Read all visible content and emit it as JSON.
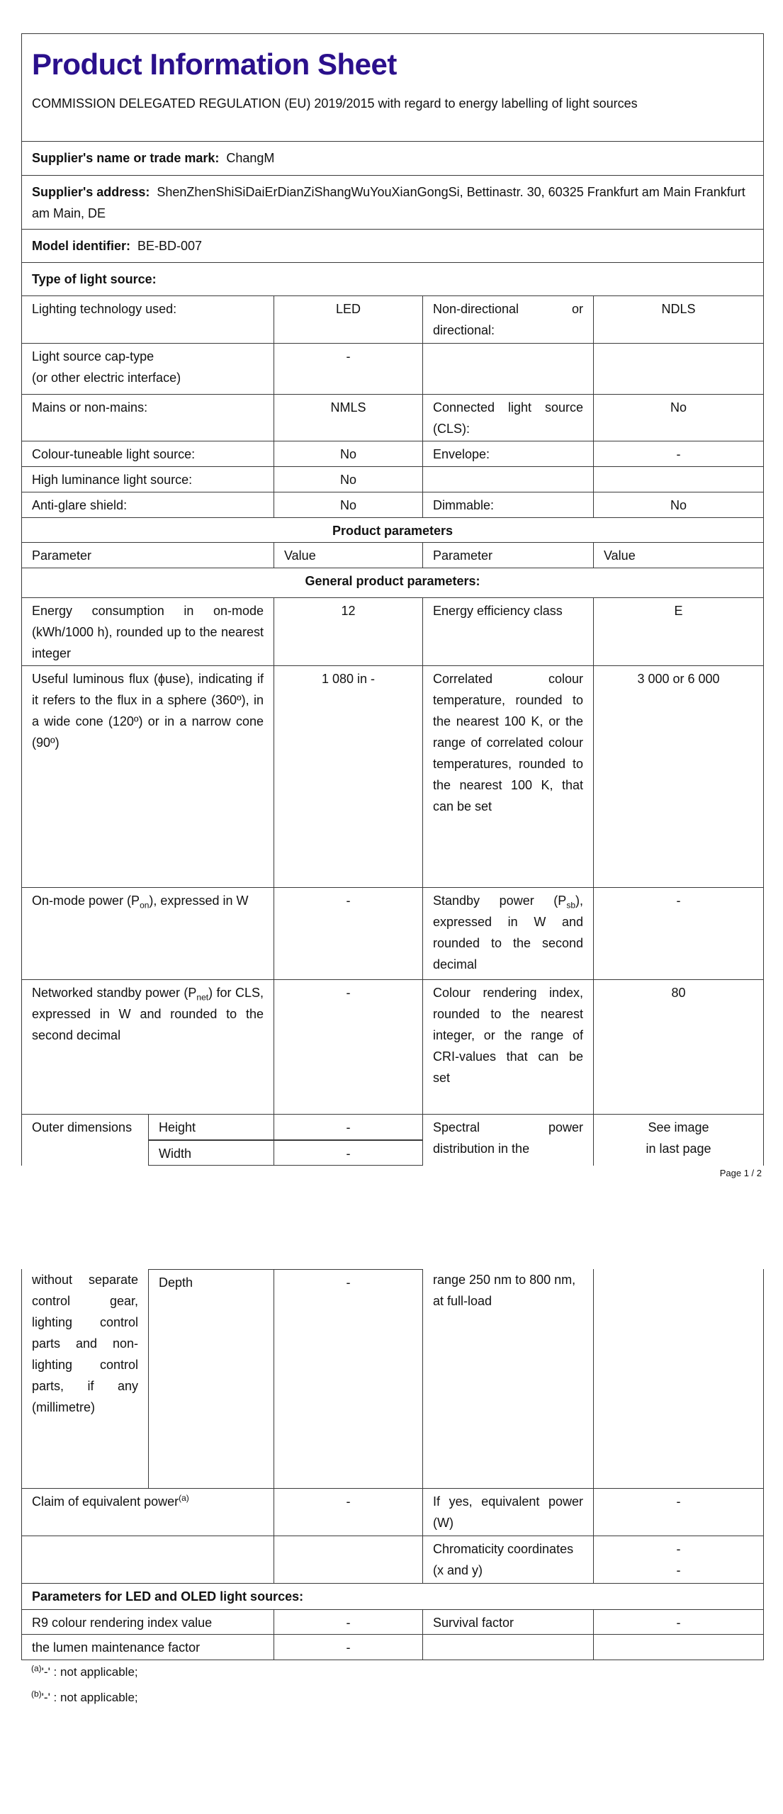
{
  "title": "Product Information Sheet",
  "regulation": "COMMISSION DELEGATED REGULATION (EU) 2019/2015 with regard to energy labelling of light sources",
  "supplier_name": {
    "label": "Supplier's name or trade mark:",
    "value": "ChangM"
  },
  "supplier_address": {
    "label": "Supplier's address:",
    "value": "ShenZhenShiSiDaiErDianZiShangWuYouXianGongSi, Bettinastr. 30, 60325 Frankfurt am Main Frankfurt am Main, DE"
  },
  "model": {
    "label": "Model identifier:",
    "value": "BE-BD-007"
  },
  "type_heading": "Type of light source:",
  "type_rows": [
    {
      "label": "Lighting technology used:",
      "value": "LED",
      "label2": "Non-directional or directional:",
      "value2": "NDLS"
    },
    {
      "label": "Light source cap-type",
      "label_line2": "(or other electric interface)",
      "value": "-",
      "label2": "",
      "value2": ""
    },
    {
      "label": "Mains or non-mains:",
      "value": "NMLS",
      "label2": "Connected light source (CLS):",
      "value2": "No"
    },
    {
      "label": "Colour-tuneable light source:",
      "value": "No",
      "label2": "Envelope:",
      "value2": "-"
    },
    {
      "label": "High luminance light source:",
      "value": "No",
      "label2": "",
      "value2": ""
    },
    {
      "label": "Anti-glare shield:",
      "value": "No",
      "label2": "Dimmable:",
      "value2": "No"
    }
  ],
  "product_params_heading": "Product parameters",
  "param_header": {
    "p1": "Parameter",
    "v1": "Value",
    "p2": "Parameter",
    "v2": "Value"
  },
  "general_heading": "General product parameters:",
  "general": {
    "energy_consumption": {
      "label": "Energy consumption in on-mode (kWh/1000 h), rounded up to the nearest integer",
      "value": "12"
    },
    "energy_class": {
      "label": "Energy efficiency class",
      "value": "E"
    },
    "flux": {
      "label": "Useful luminous flux (ϕuse), indicating if it refers to the flux in a sphere (360º), in a wide cone (120º) or in a narrow cone (90º)",
      "value": "1 080 in -"
    },
    "cct": {
      "label": "Correlated colour temperature, rounded to the nearest 100 K, or the range of correlated colour temperatures, rounded to the nearest 100 K, that can be set",
      "value": "3 000 or 6 000"
    },
    "on_power": {
      "pre": "On-mode power (P",
      "sub": "on",
      "post": "), expressed in W",
      "value": "-"
    },
    "standby_power": {
      "pre": "Standby power (P",
      "sub": "sb",
      "post": "), expressed in W and rounded to the second decimal",
      "value": "-"
    },
    "net_standby": {
      "pre": "Networked standby power (P",
      "sub": "net",
      "post": ") for CLS, expressed in W and rounded to the second decimal",
      "value": "-"
    },
    "cri": {
      "label": "Colour rendering index, rounded to the nearest integer, or the range of CRI-values that can be set",
      "value": "80"
    },
    "outer_dimensions": {
      "label_page1": "Outer dimensions",
      "label_page2": "without separate control gear, lighting control parts and non-lighting control parts, if any (millimetre)",
      "height": {
        "label": "Height",
        "value": "-"
      },
      "width": {
        "label": "Width",
        "value": "-"
      },
      "depth": {
        "label": "Depth",
        "value": "-"
      }
    },
    "spd": {
      "label_page1": "Spectral power distribution in the",
      "label_page2": "range 250 nm to 800 nm, at full-load",
      "value_line1": "See image",
      "value_line2": "in last page"
    },
    "equivalent_claim": {
      "label": "Claim of equivalent power",
      "sup": "(a)",
      "value": "-"
    },
    "equivalent_power": {
      "label": "If yes, equivalent power (W)",
      "value": "-"
    },
    "chromaticity": {
      "label": "Chromaticity coordinates (x and y)",
      "value_x": "-",
      "value_y": "-"
    }
  },
  "page_footer": "Page 1 / 2",
  "led_heading": "Parameters for LED and OLED light sources:",
  "led": {
    "r9": {
      "label": "R9 colour rendering index value",
      "value": "-"
    },
    "survival": {
      "label": "Survival factor",
      "value": "-"
    },
    "lumen_maintenance": {
      "label": "the lumen maintenance factor",
      "value": "-"
    }
  },
  "footnotes": [
    {
      "mark": "(a)",
      "text": "'-' : not applicable;"
    },
    {
      "mark": "(b)",
      "text": "'-' : not applicable;"
    }
  ]
}
